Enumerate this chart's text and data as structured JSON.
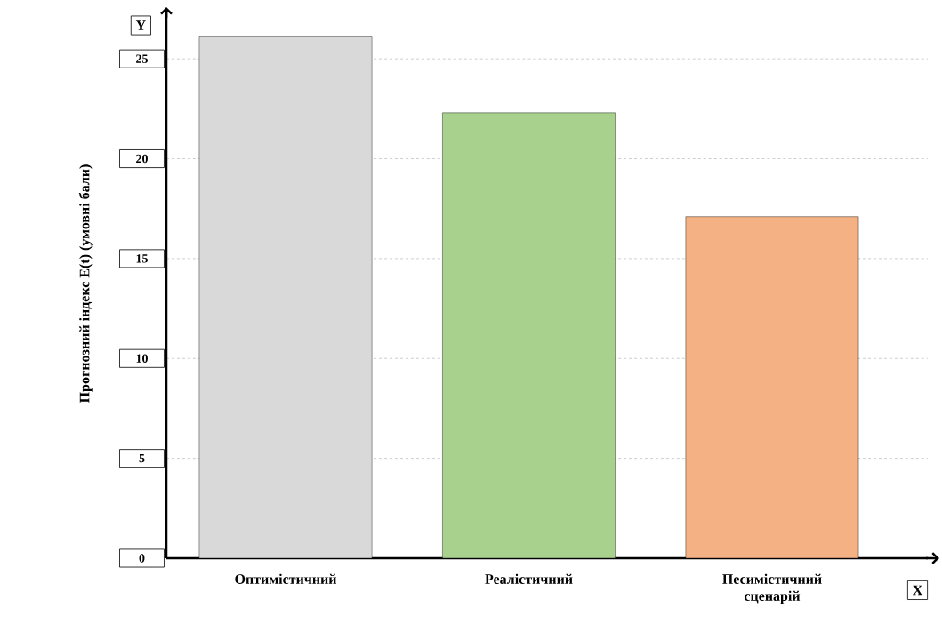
{
  "chart_data": {
    "type": "bar",
    "categories": [
      "Оптимістичний",
      "Реалістичний",
      "Песимістичний сценарій"
    ],
    "values": [
      26.1,
      22.3,
      17.1
    ],
    "colors": [
      "#d9d9d9",
      "#a9d18e",
      "#f4b183"
    ],
    "xlabel": "X",
    "ylabel": "Прогнозний індекс E(t) (умовні бали)",
    "annotations": [
      "Y"
    ],
    "ylim": [
      0,
      27.5
    ],
    "yticks": [
      0,
      5,
      10,
      15,
      20,
      25
    ],
    "grid": "y"
  }
}
